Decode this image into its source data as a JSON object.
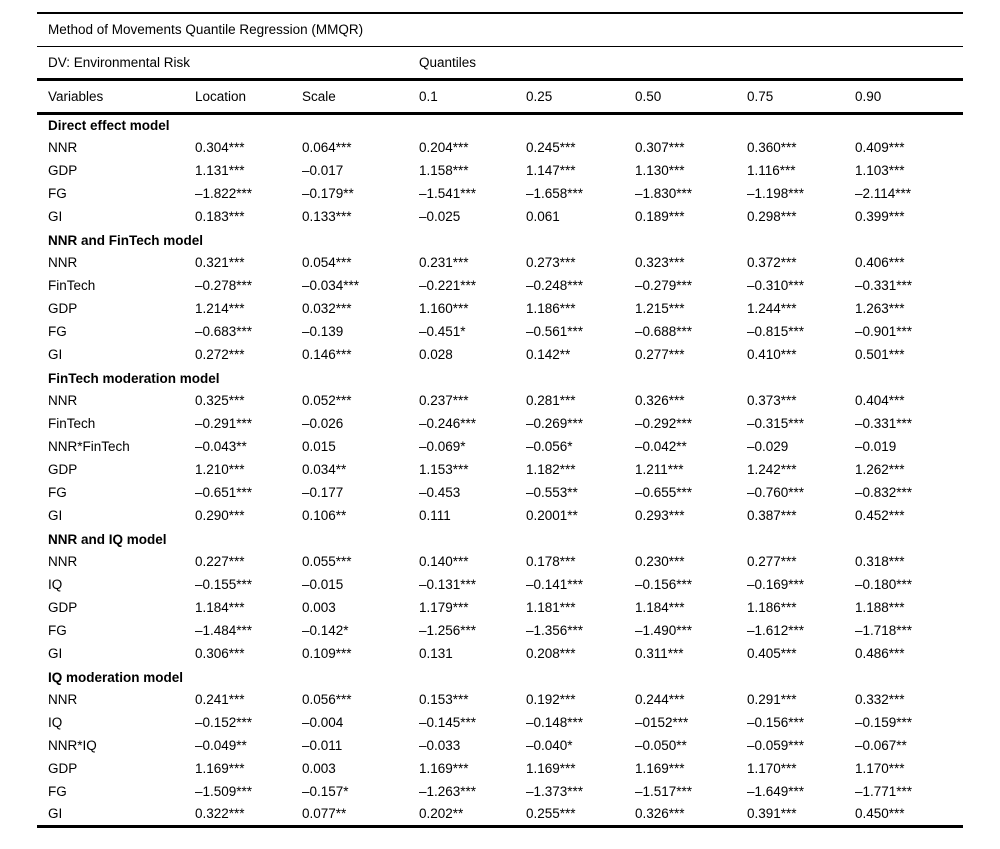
{
  "table": {
    "title": "Method of Movements Quantile Regression (MMQR)",
    "dv_label": "DV: Environmental Risk",
    "quantiles_label": "Quantiles",
    "columns": [
      "Variables",
      "Location",
      "Scale",
      "0.1",
      "0.25",
      "0.50",
      "0.75",
      "0.90"
    ],
    "sections": [
      {
        "name": "Direct effect model",
        "rows": [
          {
            "variable": "NNR",
            "values": [
              "0.304***",
              "0.064***",
              "0.204***",
              "0.245***",
              "0.307***",
              "0.360***",
              "0.409***"
            ]
          },
          {
            "variable": "GDP",
            "values": [
              "1.131***",
              "–0.017",
              "1.158***",
              "1.147***",
              "1.130***",
              "1.116***",
              "1.103***"
            ]
          },
          {
            "variable": "FG",
            "values": [
              "–1.822***",
              "–0.179**",
              "–1.541***",
              "–1.658***",
              "–1.830***",
              "–1.198***",
              "–2.114***"
            ]
          },
          {
            "variable": "GI",
            "values": [
              "0.183***",
              "0.133***",
              "–0.025",
              "0.061",
              "0.189***",
              "0.298***",
              "0.399***"
            ]
          }
        ]
      },
      {
        "name": "NNR and FinTech model",
        "rows": [
          {
            "variable": "NNR",
            "values": [
              "0.321***",
              "0.054***",
              "0.231***",
              "0.273***",
              "0.323***",
              "0.372***",
              "0.406***"
            ]
          },
          {
            "variable": "FinTech",
            "values": [
              "–0.278***",
              "–0.034***",
              "–0.221***",
              "–0.248***",
              "–0.279***",
              "–0.310***",
              "–0.331***"
            ]
          },
          {
            "variable": "GDP",
            "values": [
              "1.214***",
              "0.032***",
              "1.160***",
              "1.186***",
              "1.215***",
              "1.244***",
              "1.263***"
            ]
          },
          {
            "variable": "FG",
            "values": [
              "–0.683***",
              "–0.139",
              "–0.451*",
              "–0.561***",
              "–0.688***",
              "–0.815***",
              "–0.901***"
            ]
          },
          {
            "variable": "GI",
            "values": [
              "0.272***",
              "0.146***",
              "0.028",
              "0.142**",
              "0.277***",
              "0.410***",
              "0.501***"
            ]
          }
        ]
      },
      {
        "name": "FinTech moderation model",
        "rows": [
          {
            "variable": "NNR",
            "values": [
              "0.325***",
              "0.052***",
              "0.237***",
              "0.281***",
              "0.326***",
              "0.373***",
              "0.404***"
            ]
          },
          {
            "variable": "FinTech",
            "values": [
              "–0.291***",
              "–0.026",
              "–0.246***",
              "–0.269***",
              "–0.292***",
              "–0.315***",
              "–0.331***"
            ]
          },
          {
            "variable": "NNR*FinTech",
            "values": [
              "–0.043**",
              "0.015",
              "–0.069*",
              "–0.056*",
              "–0.042**",
              "–0.029",
              "–0.019"
            ]
          },
          {
            "variable": "GDP",
            "values": [
              "1.210***",
              "0.034**",
              "1.153***",
              "1.182***",
              "1.211***",
              "1.242***",
              "1.262***"
            ]
          },
          {
            "variable": "FG",
            "values": [
              "–0.651***",
              "–0.177",
              "–0.453",
              "–0.553**",
              "–0.655***",
              "–0.760***",
              "–0.832***"
            ]
          },
          {
            "variable": "GI",
            "values": [
              "0.290***",
              "0.106**",
              "0.111",
              "0.2001**",
              "0.293***",
              "0.387***",
              "0.452***"
            ]
          }
        ]
      },
      {
        "name": "NNR and IQ model",
        "rows": [
          {
            "variable": "NNR",
            "values": [
              "0.227***",
              "0.055***",
              "0.140***",
              "0.178***",
              "0.230***",
              "0.277***",
              "0.318***"
            ]
          },
          {
            "variable": "IQ",
            "values": [
              "–0.155***",
              "–0.015",
              "–0.131***",
              "–0.141***",
              "–0.156***",
              "–0.169***",
              "–0.180***"
            ]
          },
          {
            "variable": "GDP",
            "values": [
              "1.184***",
              "0.003",
              "1.179***",
              "1.181***",
              "1.184***",
              "1.186***",
              "1.188***"
            ]
          },
          {
            "variable": "FG",
            "values": [
              "–1.484***",
              "–0.142*",
              "–1.256***",
              "–1.356***",
              "–1.490***",
              "–1.612***",
              "–1.718***"
            ]
          },
          {
            "variable": "GI",
            "values": [
              "0.306***",
              "0.109***",
              "0.131",
              "0.208***",
              "0.311***",
              "0.405***",
              "0.486***"
            ]
          }
        ]
      },
      {
        "name": "IQ moderation model",
        "rows": [
          {
            "variable": "NNR",
            "values": [
              "0.241***",
              "0.056***",
              "0.153***",
              "0.192***",
              "0.244***",
              "0.291***",
              "0.332***"
            ]
          },
          {
            "variable": "IQ",
            "values": [
              "–0.152***",
              "–0.004",
              "–0.145***",
              "–0.148***",
              "–0152***",
              "–0.156***",
              "–0.159***"
            ]
          },
          {
            "variable": "NNR*IQ",
            "values": [
              "–0.049**",
              "–0.011",
              "–0.033",
              "–0.040*",
              "–0.050**",
              "–0.059***",
              "–0.067**"
            ]
          },
          {
            "variable": "GDP",
            "values": [
              "1.169***",
              "0.003",
              "1.169***",
              "1.169***",
              "1.169***",
              "1.170***",
              "1.170***"
            ]
          },
          {
            "variable": "FG",
            "values": [
              "–1.509***",
              "–0.157*",
              "–1.263***",
              "–1.373***",
              "–1.517***",
              "–1.649***",
              "–1.771***"
            ]
          },
          {
            "variable": "GI",
            "values": [
              "0.322***",
              "0.077**",
              "0.202**",
              "0.255***",
              "0.326***",
              "0.391***",
              "0.450***"
            ]
          }
        ]
      }
    ]
  }
}
